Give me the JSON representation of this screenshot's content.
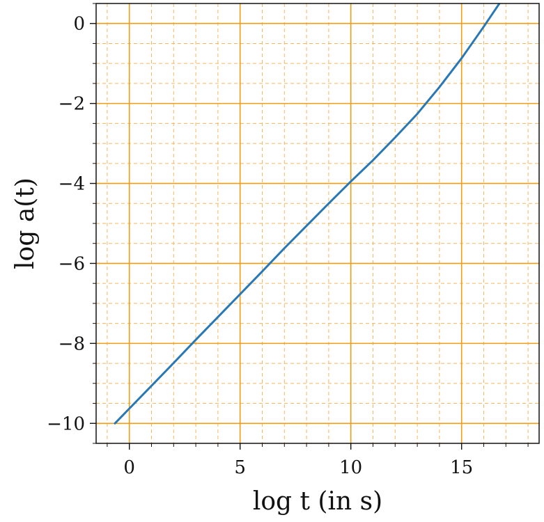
{
  "chart_data": {
    "type": "line",
    "xlabel": "log t (in s)",
    "ylabel": "log a(t)",
    "xlim": [
      -1.5,
      18.5
    ],
    "ylim": [
      -10.5,
      0.5
    ],
    "x_ticks": [
      0,
      5,
      10,
      15
    ],
    "x_tick_labels": [
      "0",
      "5",
      "10",
      "15"
    ],
    "y_ticks": [
      -10,
      -8,
      -6,
      -4,
      -2,
      0
    ],
    "y_tick_labels": [
      "−10",
      "−8",
      "−6",
      "−4",
      "−2",
      "0"
    ],
    "grid": true,
    "minor_grid": true,
    "series": [
      {
        "color": "#2878b5",
        "x": [
          -0.65,
          0,
          1,
          2,
          3,
          4,
          5,
          6,
          7,
          8,
          9,
          10,
          11,
          12,
          13,
          14,
          15,
          16,
          17,
          17.65
        ],
        "y": [
          -10,
          -9.63,
          -9.06,
          -8.49,
          -7.91,
          -7.34,
          -6.77,
          -6.2,
          -5.62,
          -5.06,
          -4.5,
          -3.95,
          -3.42,
          -2.85,
          -2.26,
          -1.59,
          -0.87,
          -0.08,
          0.74,
          1.26
        ]
      }
    ],
    "grid_color_major": "#f39c12",
    "grid_color_minor": "#f7b560",
    "axis_color": "#111111"
  }
}
